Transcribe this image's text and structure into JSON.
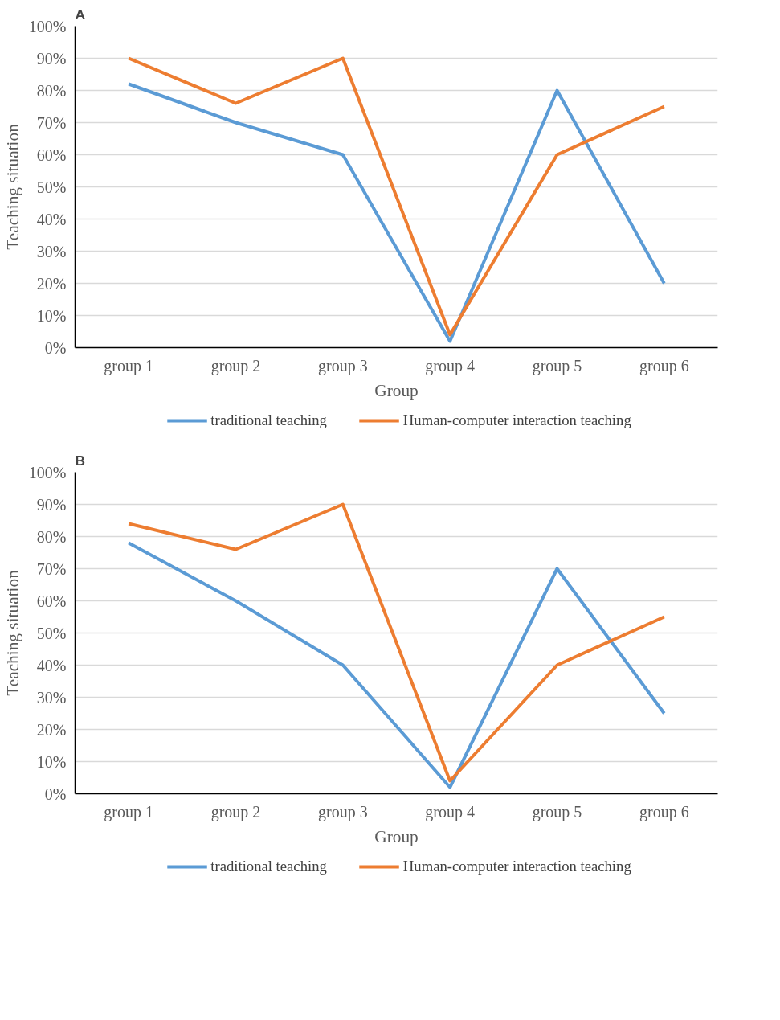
{
  "chart_data": [
    {
      "type": "line",
      "title": "A",
      "xlabel": "Group",
      "ylabel": "Teaching situation",
      "categories": [
        "group 1",
        "group 2",
        "group 3",
        "group 4",
        "group 5",
        "group 6"
      ],
      "series": [
        {
          "name": "traditional teaching",
          "color": "#5b9bd5",
          "values": [
            82,
            70,
            60,
            2,
            80,
            20
          ]
        },
        {
          "name": "Human-computer interaction teaching",
          "color": "#ed7d31",
          "values": [
            90,
            76,
            90,
            4,
            60,
            75
          ]
        }
      ],
      "ylim": [
        0,
        100
      ],
      "yticks": [
        {
          "value": 0,
          "label": "0%"
        },
        {
          "value": 10,
          "label": "10%"
        },
        {
          "value": 20,
          "label": "20%"
        },
        {
          "value": 30,
          "label": "30%"
        },
        {
          "value": 40,
          "label": "40%"
        },
        {
          "value": 50,
          "label": "50%"
        },
        {
          "value": 60,
          "label": "60%"
        },
        {
          "value": 70,
          "label": "70%"
        },
        {
          "value": 80,
          "label": "80%"
        },
        {
          "value": 90,
          "label": "90%"
        },
        {
          "value": 100,
          "label": "100%"
        }
      ],
      "grid": "y",
      "legend": "bottom",
      "marker": "none",
      "line_style": "solid"
    },
    {
      "type": "line",
      "title": "B",
      "xlabel": "Group",
      "ylabel": "Teaching situation",
      "categories": [
        "group 1",
        "group 2",
        "group 3",
        "group 4",
        "group 5",
        "group 6"
      ],
      "series": [
        {
          "name": "traditional teaching",
          "color": "#5b9bd5",
          "values": [
            78,
            60,
            40,
            2,
            70,
            25
          ]
        },
        {
          "name": "Human-computer interaction teaching",
          "color": "#ed7d31",
          "values": [
            84,
            76,
            90,
            4,
            40,
            55
          ]
        }
      ],
      "ylim": [
        0,
        100
      ],
      "yticks": [
        {
          "value": 0,
          "label": "0%"
        },
        {
          "value": 10,
          "label": "10%"
        },
        {
          "value": 20,
          "label": "20%"
        },
        {
          "value": 30,
          "label": "30%"
        },
        {
          "value": 40,
          "label": "40%"
        },
        {
          "value": 50,
          "label": "50%"
        },
        {
          "value": 60,
          "label": "60%"
        },
        {
          "value": 70,
          "label": "70%"
        },
        {
          "value": 80,
          "label": "80%"
        },
        {
          "value": 90,
          "label": "90%"
        },
        {
          "value": 100,
          "label": "100%"
        }
      ],
      "grid": "y",
      "legend": "bottom",
      "marker": "none",
      "line_style": "solid"
    }
  ]
}
